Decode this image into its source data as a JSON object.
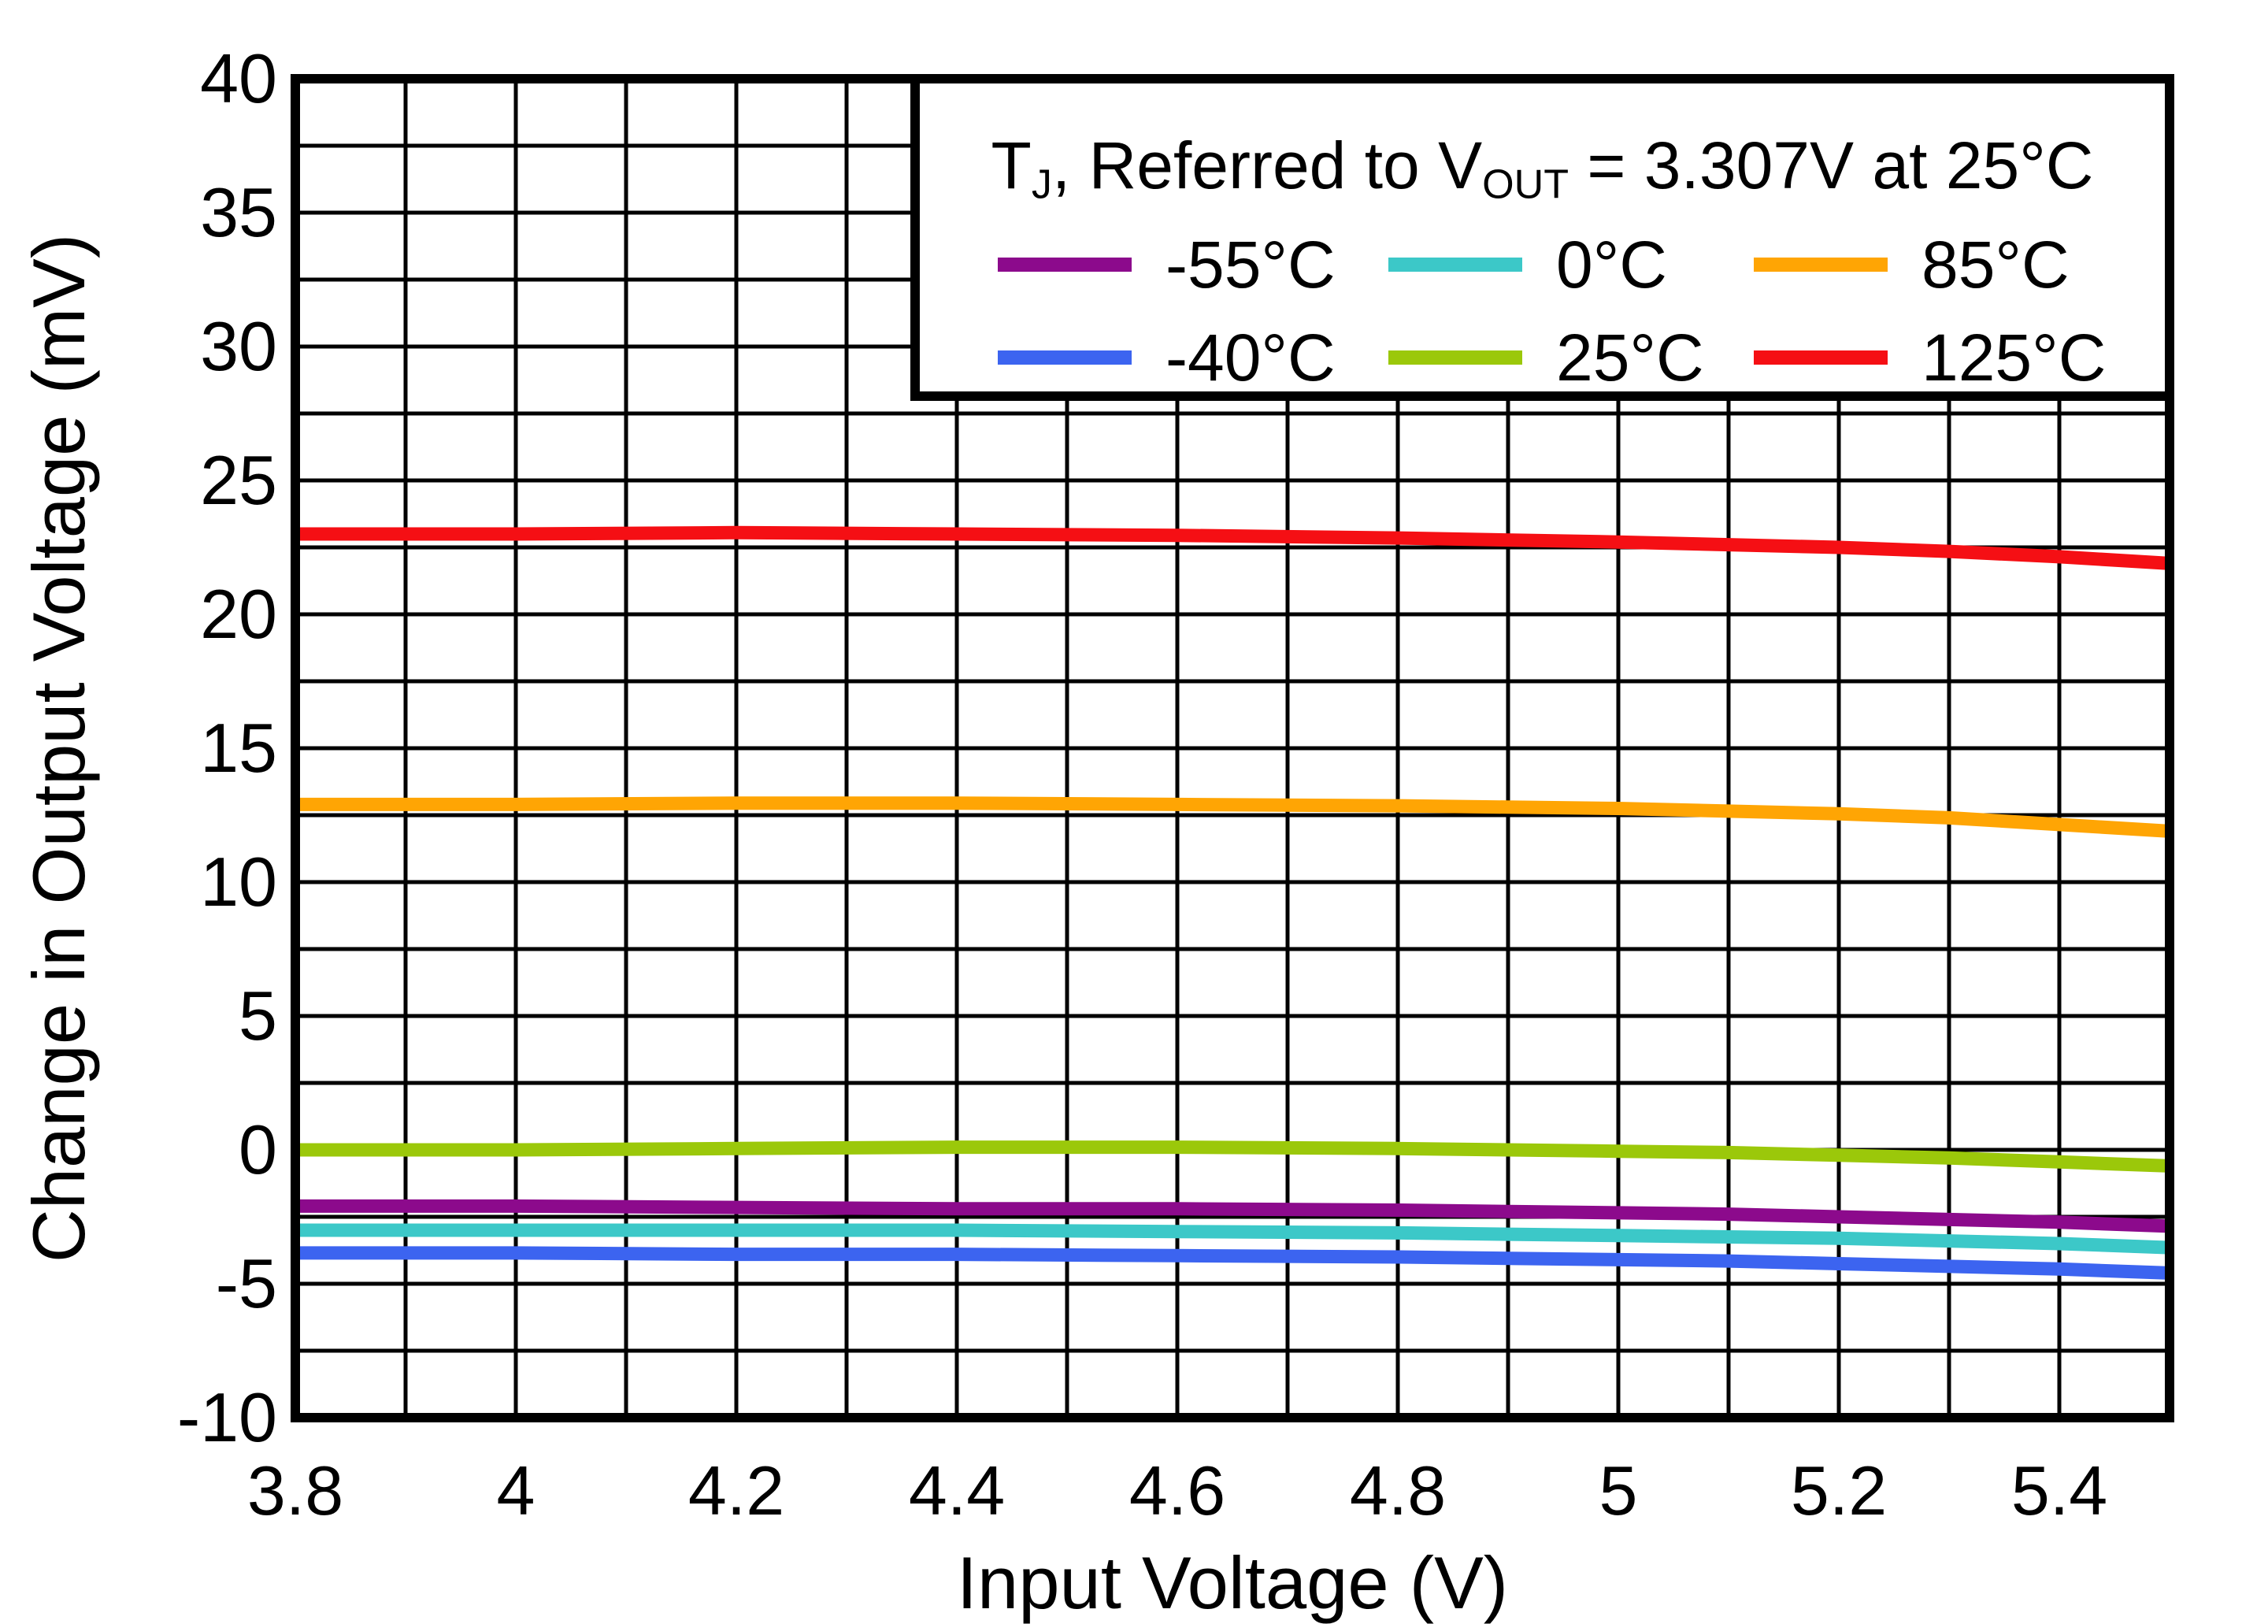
{
  "chart_data": {
    "type": "line",
    "title_parts": [
      {
        "text": "T"
      },
      {
        "text": "J",
        "sub": true
      },
      {
        "text": ", Referred to V"
      },
      {
        "text": "OUT",
        "sub": true
      },
      {
        "text": " = 3.307V at 25°C"
      }
    ],
    "xlabel": "Input Voltage (V)",
    "ylabel": "Change in Output Voltage (mV)",
    "xlim": [
      3.8,
      5.5
    ],
    "ylim": [
      -10,
      40
    ],
    "grid": {
      "x_minor_step": 0.1,
      "y_minor_step": 2.5,
      "grid_on": true
    },
    "legend_position": "top-right",
    "axis_color": "#000000",
    "background_color": "#ffffff",
    "x_ticks": [
      {
        "v": 3.8,
        "label": "3.8"
      },
      {
        "v": 4.0,
        "label": "4"
      },
      {
        "v": 4.2,
        "label": "4.2"
      },
      {
        "v": 4.4,
        "label": "4.4"
      },
      {
        "v": 4.6,
        "label": "4.6"
      },
      {
        "v": 4.8,
        "label": "4.8"
      },
      {
        "v": 5.0,
        "label": "5"
      },
      {
        "v": 5.2,
        "label": "5.2"
      },
      {
        "v": 5.4,
        "label": "5.4"
      }
    ],
    "y_ticks": [
      {
        "v": 40,
        "label": "40"
      },
      {
        "v": 35,
        "label": "35"
      },
      {
        "v": 30,
        "label": "30"
      },
      {
        "v": 25,
        "label": "25"
      },
      {
        "v": 20,
        "label": "20"
      },
      {
        "v": 15,
        "label": "15"
      },
      {
        "v": 10,
        "label": "10"
      },
      {
        "v": 5,
        "label": "5"
      },
      {
        "v": 0,
        "label": "0"
      },
      {
        "v": -5,
        "label": "-5"
      },
      {
        "v": -10,
        "label": "-10"
      }
    ],
    "x": [
      3.8,
      4.0,
      4.2,
      4.4,
      4.6,
      4.8,
      5.0,
      5.1,
      5.2,
      5.3,
      5.4,
      5.5
    ],
    "series": [
      {
        "key": "minus55",
        "name": "-55°C",
        "color": "#8C0A8C",
        "values": [
          -2.1,
          -2.1,
          -2.15,
          -2.2,
          -2.2,
          -2.25,
          -2.35,
          -2.4,
          -2.5,
          -2.6,
          -2.7,
          -2.85
        ]
      },
      {
        "key": "zero",
        "name": "0°C",
        "color": "#3CC8C8",
        "values": [
          -3.0,
          -3.0,
          -3.0,
          -3.0,
          -3.05,
          -3.1,
          -3.2,
          -3.25,
          -3.3,
          -3.4,
          -3.5,
          -3.65
        ]
      },
      {
        "key": "85",
        "name": "85°C",
        "color": "#FFA504",
        "values": [
          12.9,
          12.9,
          12.95,
          12.95,
          12.9,
          12.85,
          12.75,
          12.65,
          12.55,
          12.4,
          12.15,
          11.9
        ]
      },
      {
        "key": "minus40",
        "name": "-40°C",
        "color": "#3C64F0",
        "values": [
          -3.85,
          -3.85,
          -3.9,
          -3.9,
          -3.95,
          -4.0,
          -4.1,
          -4.15,
          -4.25,
          -4.35,
          -4.45,
          -4.6
        ]
      },
      {
        "key": "25",
        "name": "25°C",
        "color": "#9BC80A",
        "values": [
          0.0,
          0.0,
          0.05,
          0.1,
          0.1,
          0.05,
          -0.05,
          -0.1,
          -0.2,
          -0.3,
          -0.45,
          -0.6
        ]
      },
      {
        "key": "125",
        "name": "125°C",
        "color": "#F50F14",
        "values": [
          23.0,
          23.0,
          23.05,
          23.0,
          22.95,
          22.85,
          22.7,
          22.6,
          22.5,
          22.35,
          22.15,
          21.9
        ]
      }
    ]
  }
}
